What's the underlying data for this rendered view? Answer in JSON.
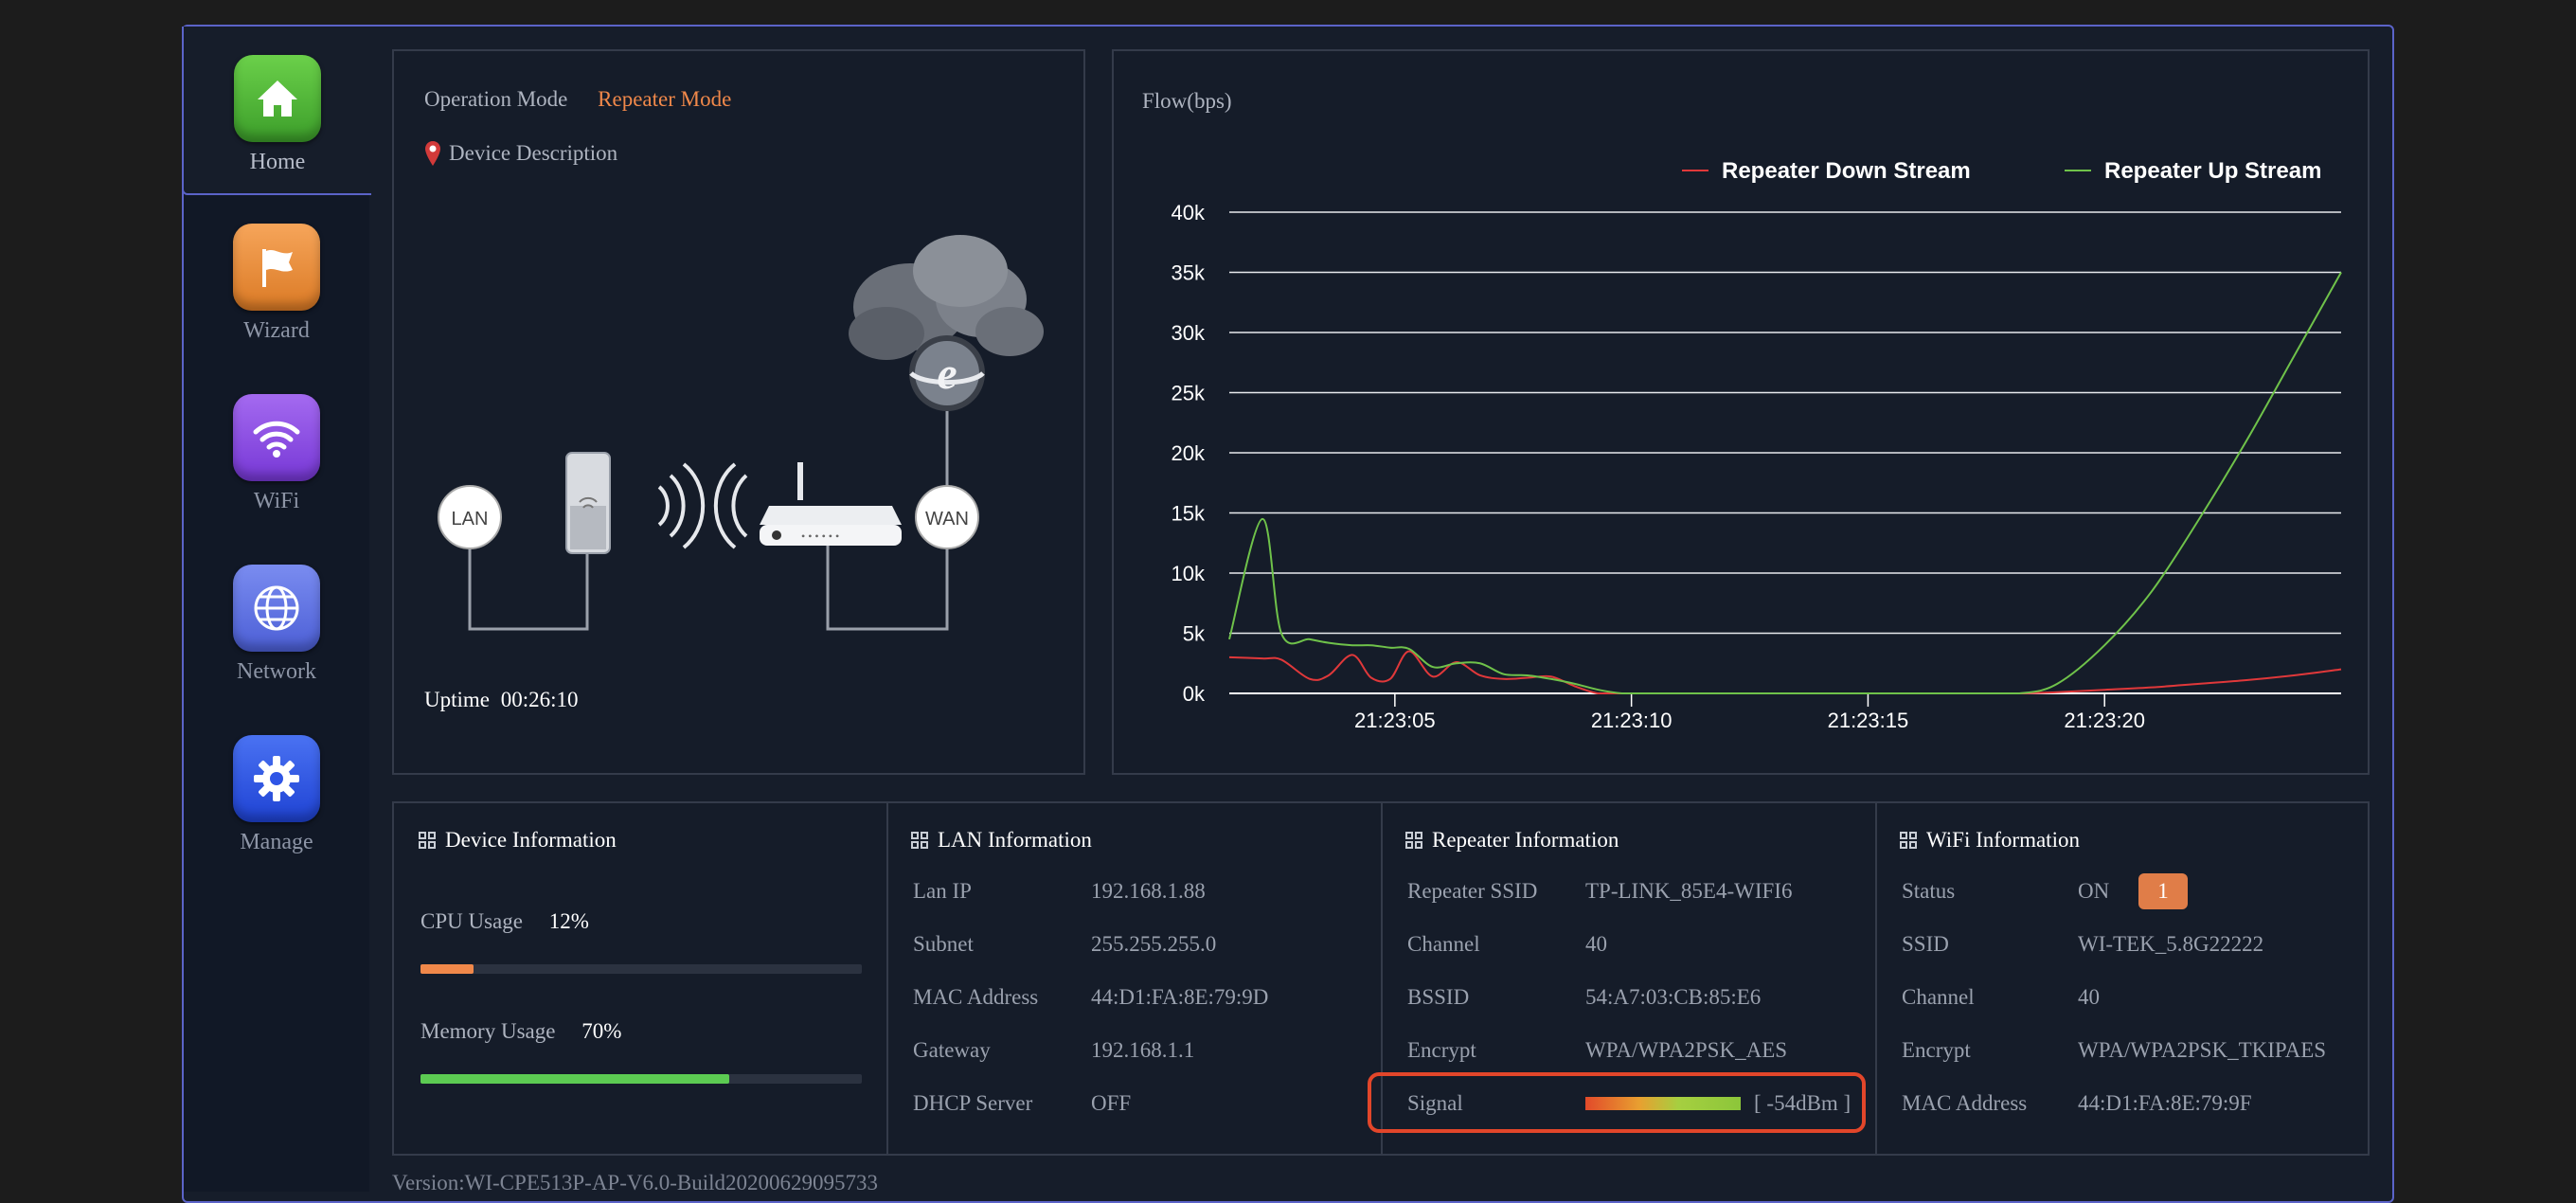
{
  "sidebar": {
    "items": [
      {
        "label": "Home",
        "icon": "home-icon",
        "color": "#4fb13a"
      },
      {
        "label": "Wizard",
        "icon": "flag-icon",
        "color": "#e88a2d"
      },
      {
        "label": "WiFi",
        "icon": "wifi-icon",
        "color": "#8a4be0"
      },
      {
        "label": "Network",
        "icon": "globe-icon",
        "color": "#5b6fe0"
      },
      {
        "label": "Manage",
        "icon": "gear-icon",
        "color": "#2f55e6"
      }
    ]
  },
  "overview": {
    "mode_label": "Operation Mode",
    "mode_value": "Repeater Mode",
    "device_description": "Device Description",
    "lan_label": "LAN",
    "wan_label": "WAN",
    "uptime_label": "Uptime",
    "uptime_value": "00:26:10"
  },
  "flow": {
    "title": "Flow(bps)",
    "legend_down": "Repeater Down Stream",
    "legend_up": "Repeater Up Stream"
  },
  "chart_data": {
    "type": "line",
    "title": "Flow(bps)",
    "xlabel": "",
    "ylabel": "",
    "ylim": [
      0,
      40000
    ],
    "yticks": [
      "0k",
      "5k",
      "10k",
      "15k",
      "20k",
      "25k",
      "30k",
      "35k",
      "40k"
    ],
    "xticks": [
      "21:23:05",
      "21:23:10",
      "21:23:15",
      "21:23:20"
    ],
    "x": [
      1.5,
      2.2,
      2.6,
      3.2,
      3.6,
      4.1,
      4.5,
      4.9,
      5.3,
      5.8,
      6.3,
      6.8,
      7.3,
      7.8,
      8.3,
      8.8,
      9.3,
      9.8,
      10.3,
      10.8,
      11.5,
      12.5,
      14,
      15.5,
      17,
      18.2,
      19,
      20,
      21,
      22,
      23,
      24,
      25
    ],
    "series": [
      {
        "name": "Repeater Down Stream",
        "color": "#e0383a",
        "values": [
          3000,
          2900,
          2800,
          1200,
          1500,
          3200,
          1300,
          1200,
          3500,
          1400,
          2600,
          1500,
          1200,
          1300,
          1400,
          600,
          0,
          0,
          0,
          0,
          0,
          0,
          0,
          0,
          0,
          0,
          100,
          300,
          500,
          800,
          1100,
          1500,
          2000
        ]
      },
      {
        "name": "Repeater Up Stream",
        "color": "#6fc24a",
        "values": [
          4500,
          14500,
          5000,
          4500,
          4200,
          4000,
          4000,
          3800,
          3700,
          2200,
          2500,
          2500,
          1600,
          1500,
          1200,
          800,
          300,
          0,
          0,
          0,
          0,
          0,
          0,
          0,
          0,
          0,
          800,
          4000,
          8500,
          14500,
          21000,
          28000,
          35000
        ]
      }
    ],
    "legend": "top-right",
    "grid": true
  },
  "device_info": {
    "title": "Device Information",
    "cpu_label": "CPU Usage",
    "cpu_value": "12%",
    "cpu_fraction": 0.12,
    "mem_label": "Memory Usage",
    "mem_value": "70%",
    "mem_fraction": 0.7
  },
  "lan_info": {
    "title": "LAN Information",
    "rows": [
      {
        "k": "Lan IP",
        "v": "192.168.1.88"
      },
      {
        "k": "Subnet",
        "v": "255.255.255.0"
      },
      {
        "k": "MAC Address",
        "v": "44:D1:FA:8E:79:9D"
      },
      {
        "k": "Gateway",
        "v": "192.168.1.1"
      },
      {
        "k": "DHCP Server",
        "v": "OFF"
      }
    ]
  },
  "repeater_info": {
    "title": "Repeater Information",
    "rows": [
      {
        "k": "Repeater SSID",
        "v": "TP-LINK_85E4-WIFI6"
      },
      {
        "k": "Channel",
        "v": "40"
      },
      {
        "k": "BSSID",
        "v": "54:A7:03:CB:85:E6"
      },
      {
        "k": "Encrypt",
        "v": "WPA/WPA2PSK_AES"
      }
    ],
    "signal_label": "Signal",
    "signal_value": "[ -54dBm ]"
  },
  "wifi_info": {
    "title": "WiFi Information",
    "status_label": "Status",
    "status_value": "ON",
    "status_badge": "1",
    "rows": [
      {
        "k": "SSID",
        "v": "WI-TEK_5.8G22222"
      },
      {
        "k": "Channel",
        "v": "40"
      },
      {
        "k": "Encrypt",
        "v": "WPA/WPA2PSK_TKIPAES"
      },
      {
        "k": "MAC Address",
        "v": "44:D1:FA:8E:79:9F"
      }
    ]
  },
  "footer": {
    "version": "Version:WI-CPE513P-AP-V6.0-Build20200629095733"
  }
}
